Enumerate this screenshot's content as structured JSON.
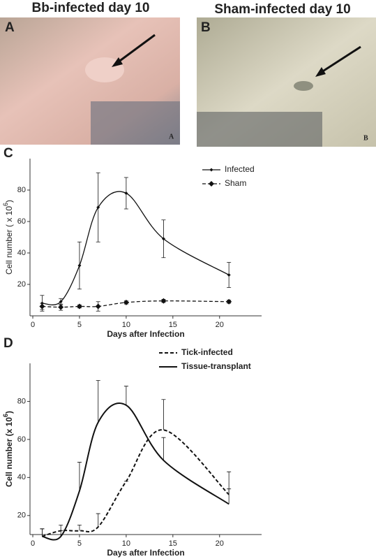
{
  "panels": [
    {
      "title": "Bb-infected day 10",
      "letter": "A",
      "corner": "A"
    },
    {
      "title": "Sham-infected day 10",
      "letter": "B",
      "corner": "B"
    }
  ],
  "chart_data": [
    {
      "type": "line",
      "letter": "C",
      "xlabel": "Days after Infection",
      "ylabel": "Cell number ( x 10",
      "ylabel_sup": "6",
      "ylabel_end": ")",
      "x": [
        1,
        3,
        5,
        7,
        10,
        14,
        21
      ],
      "series": [
        {
          "name": "Infected",
          "color": "#111",
          "dash": false,
          "marker": "small",
          "values": [
            8,
            9,
            32,
            69,
            78,
            49,
            26
          ],
          "errors": [
            5,
            2,
            15,
            22,
            10,
            12,
            8
          ]
        },
        {
          "name": "Sham",
          "color": "#111",
          "dash": true,
          "marker": "large",
          "values": [
            6,
            5.5,
            6,
            6,
            8.5,
            9.5,
            9
          ],
          "errors": [
            2,
            2,
            1,
            3,
            1,
            1,
            1
          ]
        }
      ],
      "xlim": [
        -0.3,
        24.5
      ],
      "ylim": [
        0,
        100
      ],
      "xticks": [
        0,
        5,
        10,
        15,
        20
      ],
      "yticks": [
        20,
        40,
        60,
        80
      ],
      "error_both": true
    },
    {
      "type": "line",
      "letter": "D",
      "xlabel": "Days after Infection",
      "ylabel": "Cell number (x 10",
      "ylabel_sup": "6",
      "ylabel_end": ")",
      "x": [
        1,
        3,
        5,
        7,
        10,
        14,
        21
      ],
      "series": [
        {
          "name": "Tick-infected",
          "color": "#111",
          "dash": true,
          "marker": "none",
          "values": [
            9,
            12,
            12,
            14,
            38,
            65,
            31
          ],
          "errors": [
            4,
            3,
            3,
            7,
            0,
            16,
            12
          ]
        },
        {
          "name": "Tissue-transplant",
          "color": "#111",
          "dash": false,
          "marker": "none",
          "values": [
            9,
            9,
            33,
            69,
            78,
            49,
            26
          ],
          "errors": [
            4,
            3,
            15,
            22,
            10,
            12,
            8
          ]
        }
      ],
      "xlim": [
        -0.3,
        24.5
      ],
      "ylim": [
        10,
        100
      ],
      "xticks": [
        0,
        5,
        10,
        15,
        20
      ],
      "yticks": [
        20,
        40,
        60,
        80
      ],
      "error_both": false
    }
  ]
}
